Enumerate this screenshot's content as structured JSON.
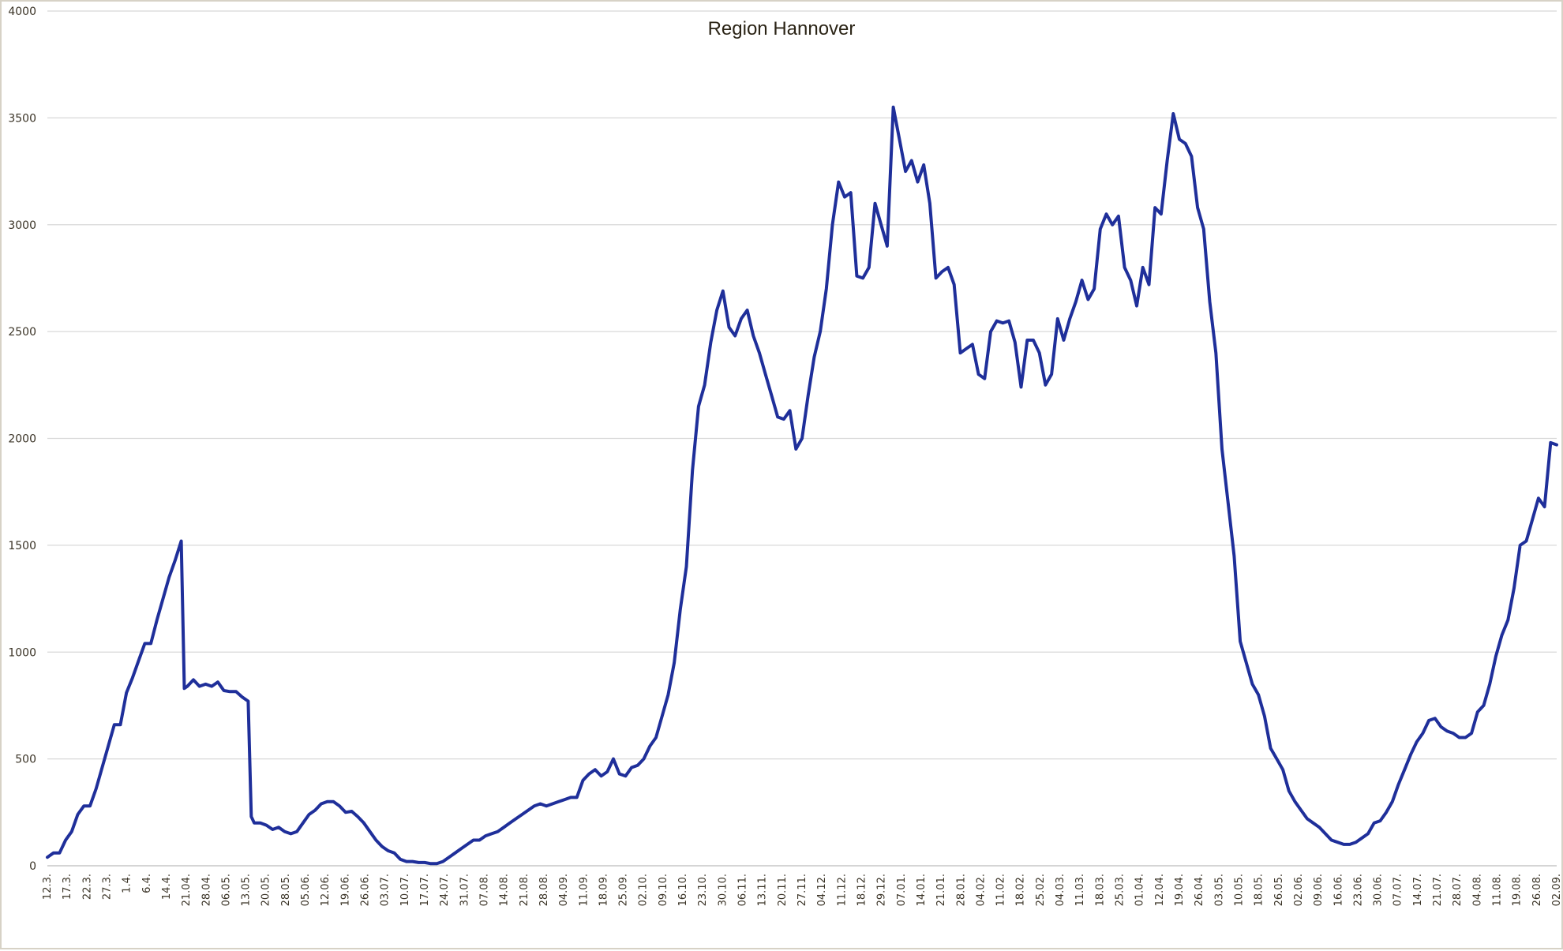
{
  "chart_data": {
    "type": "line",
    "title": "Region Hannover",
    "xlabel": "",
    "ylabel": "",
    "ylim": [
      0,
      4000
    ],
    "yticks": [
      0,
      500,
      1000,
      1500,
      2000,
      2500,
      3000,
      3500,
      4000
    ],
    "grid": true,
    "legend": "none",
    "color": "#1f2f9a",
    "x_tick_labels": [
      "12.3.",
      "17.3.",
      "22.3.",
      "27.3.",
      "1.4.",
      "6.4.",
      "14.4.",
      "21.04.",
      "28.04.",
      "06.05.",
      "13.05.",
      "20.05.",
      "28.05.",
      "05.06.",
      "12.06.",
      "19.06.",
      "26.06.",
      "03.07.",
      "10.07.",
      "17.07.",
      "24.07.",
      "31.07.",
      "07.08.",
      "14.08.",
      "21.08.",
      "28.08.",
      "04.09.",
      "11.09.",
      "18.09.",
      "25.09.",
      "02.10.",
      "09.10.",
      "16.10.",
      "23.10.",
      "30.10.",
      "06.11.",
      "13.11.",
      "20.11.",
      "27.11.",
      "04.12.",
      "11.12.",
      "18.12.",
      "29.12.",
      "07.01.",
      "14.01.",
      "21.01.",
      "28.01.",
      "04.02.",
      "11.02.",
      "18.02.",
      "25.02.",
      "04.03.",
      "11.03.",
      "18.03.",
      "25.03.",
      "01.04.",
      "12.04.",
      "19.04.",
      "26.04.",
      "03.05.",
      "10.05.",
      "18.05.",
      "26.05.",
      "02.06.",
      "09.06.",
      "16.06.",
      "23.06.",
      "30.06.",
      "07.07.",
      "14.07.",
      "21.07.",
      "28.07.",
      "04.08.",
      "11.08.",
      "19.08.",
      "26.08.",
      "02.09."
    ],
    "series": [
      {
        "values": [
          [
            0,
            40
          ],
          [
            1,
            60
          ],
          [
            2,
            60
          ],
          [
            3,
            120
          ],
          [
            4,
            160
          ],
          [
            5,
            240
          ],
          [
            6,
            280
          ],
          [
            7,
            280
          ],
          [
            8,
            360
          ],
          [
            9,
            460
          ],
          [
            10,
            560
          ],
          [
            11,
            660
          ],
          [
            12,
            660
          ],
          [
            13,
            810
          ],
          [
            14,
            880
          ],
          [
            15,
            960
          ],
          [
            16,
            1040
          ],
          [
            17,
            1040
          ],
          [
            18,
            1150
          ],
          [
            19,
            1250
          ],
          [
            20,
            1350
          ],
          [
            21,
            1430
          ],
          [
            22,
            1520
          ],
          [
            22.5,
            830
          ],
          [
            23,
            840
          ],
          [
            24,
            870
          ],
          [
            25,
            840
          ],
          [
            26,
            850
          ],
          [
            27,
            840
          ],
          [
            28,
            860
          ],
          [
            29,
            820
          ],
          [
            30,
            815
          ],
          [
            31,
            815
          ],
          [
            32,
            790
          ],
          [
            33,
            770
          ],
          [
            33.5,
            230
          ],
          [
            34,
            200
          ],
          [
            35,
            200
          ],
          [
            36,
            190
          ],
          [
            37,
            170
          ],
          [
            38,
            180
          ],
          [
            39,
            160
          ],
          [
            40,
            150
          ],
          [
            41,
            160
          ],
          [
            42,
            200
          ],
          [
            43,
            240
          ],
          [
            44,
            260
          ],
          [
            45,
            290
          ],
          [
            46,
            300
          ],
          [
            47,
            300
          ],
          [
            48,
            280
          ],
          [
            49,
            250
          ],
          [
            50,
            255
          ],
          [
            51,
            230
          ],
          [
            52,
            200
          ],
          [
            53,
            160
          ],
          [
            54,
            120
          ],
          [
            55,
            90
          ],
          [
            56,
            70
          ],
          [
            57,
            60
          ],
          [
            58,
            30
          ],
          [
            59,
            20
          ],
          [
            60,
            20
          ],
          [
            61,
            15
          ],
          [
            62,
            15
          ],
          [
            63,
            10
          ],
          [
            64,
            10
          ],
          [
            65,
            20
          ],
          [
            66,
            40
          ],
          [
            67,
            60
          ],
          [
            68,
            80
          ],
          [
            69,
            100
          ],
          [
            70,
            120
          ],
          [
            71,
            120
          ],
          [
            72,
            140
          ],
          [
            73,
            150
          ],
          [
            74,
            160
          ],
          [
            75,
            180
          ],
          [
            76,
            200
          ],
          [
            77,
            220
          ],
          [
            78,
            240
          ],
          [
            79,
            260
          ],
          [
            80,
            280
          ],
          [
            81,
            290
          ],
          [
            82,
            280
          ],
          [
            83,
            290
          ],
          [
            84,
            300
          ],
          [
            85,
            310
          ],
          [
            86,
            320
          ],
          [
            87,
            320
          ],
          [
            88,
            400
          ],
          [
            89,
            430
          ],
          [
            90,
            450
          ],
          [
            91,
            420
          ],
          [
            92,
            440
          ],
          [
            93,
            500
          ],
          [
            94,
            430
          ],
          [
            95,
            420
          ],
          [
            96,
            460
          ],
          [
            97,
            470
          ],
          [
            98,
            500
          ],
          [
            99,
            560
          ],
          [
            100,
            600
          ],
          [
            101,
            700
          ],
          [
            102,
            800
          ],
          [
            103,
            950
          ],
          [
            104,
            1200
          ],
          [
            105,
            1400
          ],
          [
            106,
            1850
          ],
          [
            107,
            2150
          ],
          [
            108,
            2250
          ],
          [
            109,
            2450
          ],
          [
            110,
            2600
          ],
          [
            111,
            2690
          ],
          [
            112,
            2520
          ],
          [
            113,
            2480
          ],
          [
            114,
            2560
          ],
          [
            115,
            2600
          ],
          [
            116,
            2480
          ],
          [
            117,
            2400
          ],
          [
            118,
            2300
          ],
          [
            119,
            2200
          ],
          [
            120,
            2100
          ],
          [
            121,
            2090
          ],
          [
            122,
            2130
          ],
          [
            123,
            1950
          ],
          [
            124,
            2000
          ],
          [
            125,
            2200
          ],
          [
            126,
            2380
          ],
          [
            127,
            2500
          ],
          [
            128,
            2700
          ],
          [
            129,
            3000
          ],
          [
            130,
            3200
          ],
          [
            131,
            3130
          ],
          [
            132,
            3150
          ],
          [
            133,
            2760
          ],
          [
            134,
            2750
          ],
          [
            135,
            2800
          ],
          [
            136,
            3100
          ],
          [
            137,
            3000
          ],
          [
            138,
            2900
          ],
          [
            139,
            3550
          ],
          [
            140,
            3400
          ],
          [
            141,
            3250
          ],
          [
            142,
            3300
          ],
          [
            143,
            3200
          ],
          [
            144,
            3280
          ],
          [
            145,
            3100
          ],
          [
            146,
            2750
          ],
          [
            147,
            2780
          ],
          [
            148,
            2800
          ],
          [
            149,
            2720
          ],
          [
            150,
            2400
          ],
          [
            151,
            2420
          ],
          [
            152,
            2440
          ],
          [
            153,
            2300
          ],
          [
            154,
            2280
          ],
          [
            155,
            2500
          ],
          [
            156,
            2550
          ],
          [
            157,
            2540
          ],
          [
            158,
            2550
          ],
          [
            159,
            2450
          ],
          [
            160,
            2240
          ],
          [
            161,
            2460
          ],
          [
            162,
            2460
          ],
          [
            163,
            2400
          ],
          [
            164,
            2250
          ],
          [
            165,
            2300
          ],
          [
            166,
            2560
          ],
          [
            167,
            2460
          ],
          [
            168,
            2560
          ],
          [
            169,
            2640
          ],
          [
            170,
            2740
          ],
          [
            171,
            2650
          ],
          [
            172,
            2700
          ],
          [
            173,
            2980
          ],
          [
            174,
            3050
          ],
          [
            175,
            3000
          ],
          [
            176,
            3040
          ],
          [
            177,
            2800
          ],
          [
            178,
            2740
          ],
          [
            179,
            2620
          ],
          [
            180,
            2800
          ],
          [
            181,
            2720
          ],
          [
            182,
            3080
          ],
          [
            183,
            3050
          ],
          [
            184,
            3300
          ],
          [
            185,
            3520
          ],
          [
            186,
            3400
          ],
          [
            187,
            3380
          ],
          [
            188,
            3320
          ],
          [
            189,
            3080
          ],
          [
            190,
            2980
          ],
          [
            191,
            2640
          ],
          [
            192,
            2400
          ],
          [
            193,
            1950
          ],
          [
            194,
            1700
          ],
          [
            195,
            1450
          ],
          [
            196,
            1050
          ],
          [
            197,
            950
          ],
          [
            198,
            850
          ],
          [
            199,
            800
          ],
          [
            200,
            700
          ],
          [
            201,
            550
          ],
          [
            202,
            500
          ],
          [
            203,
            450
          ],
          [
            204,
            350
          ],
          [
            205,
            300
          ],
          [
            206,
            260
          ],
          [
            207,
            220
          ],
          [
            208,
            200
          ],
          [
            209,
            180
          ],
          [
            210,
            150
          ],
          [
            211,
            120
          ],
          [
            212,
            110
          ],
          [
            213,
            100
          ],
          [
            214,
            100
          ],
          [
            215,
            110
          ],
          [
            216,
            130
          ],
          [
            217,
            150
          ],
          [
            218,
            200
          ],
          [
            219,
            210
          ],
          [
            220,
            250
          ],
          [
            221,
            300
          ],
          [
            222,
            380
          ],
          [
            223,
            450
          ],
          [
            224,
            520
          ],
          [
            225,
            580
          ],
          [
            226,
            620
          ],
          [
            227,
            680
          ],
          [
            228,
            690
          ],
          [
            229,
            650
          ],
          [
            230,
            630
          ],
          [
            231,
            620
          ],
          [
            232,
            600
          ],
          [
            233,
            600
          ],
          [
            234,
            620
          ],
          [
            235,
            720
          ],
          [
            236,
            750
          ],
          [
            237,
            850
          ],
          [
            238,
            980
          ],
          [
            239,
            1080
          ],
          [
            240,
            1150
          ],
          [
            241,
            1300
          ],
          [
            242,
            1500
          ],
          [
            243,
            1520
          ],
          [
            244,
            1620
          ],
          [
            245,
            1720
          ],
          [
            246,
            1680
          ],
          [
            247,
            1980
          ],
          [
            248,
            1970
          ]
        ]
      }
    ]
  }
}
